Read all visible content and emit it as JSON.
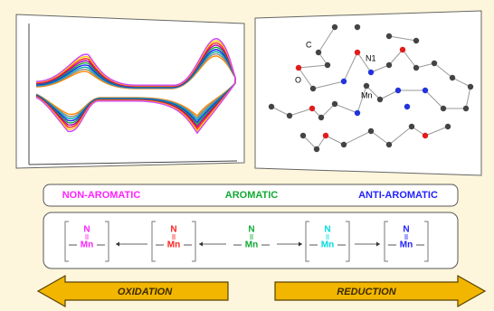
{
  "molecule": {
    "labels": [
      "C",
      "O",
      "N1",
      "Mn"
    ]
  },
  "aromaticity": {
    "labels": [
      "NON-AROMATIC",
      "AROMATIC",
      "ANTI-AROMATIC"
    ]
  },
  "species": [
    {
      "top": "N",
      "bottom": "Mn"
    },
    {
      "top": "N",
      "bottom": "Mn"
    },
    {
      "top": "N",
      "bottom": "Mn"
    },
    {
      "top": "N",
      "bottom": "Mn"
    },
    {
      "top": "N",
      "bottom": "Mn"
    }
  ],
  "arrows": {
    "left": "OXIDATION",
    "right": "REDUCTION"
  }
}
